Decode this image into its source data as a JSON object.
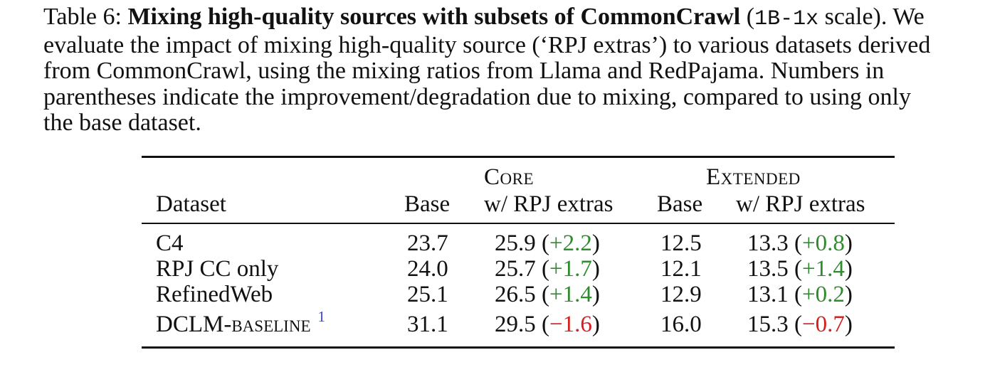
{
  "caption": {
    "label": "Table 6:",
    "title_bold": "Mixing high-quality sources with subsets of CommonCrawl",
    "scale_open": " (",
    "scale_code": "1B-1x",
    "scale_close": " scale).",
    "line1_tail": " We",
    "line2": "evaluate the impact of mixing high-quality source (‘RPJ extras’) to various datasets derived",
    "line3": "from CommonCrawl, using the mixing ratios from Llama and RedPajama.  Numbers in",
    "line4": "parentheses indicate the improvement/degradation due to mixing, compared to using only",
    "line5": "the base dataset."
  },
  "table": {
    "group_headers": {
      "core": "Core",
      "extended": "Extended"
    },
    "columns": {
      "dataset": "Dataset",
      "core_base": "Base",
      "core_extras": "w/ RPJ extras",
      "ext_base": "Base",
      "ext_extras": "w/ RPJ extras"
    },
    "rows": [
      {
        "dataset": "C4",
        "dataset_sc": "",
        "footnote": "",
        "core_base": "23.7",
        "core_extras": "25.9",
        "core_delta": "+2.2",
        "ext_base": "12.5",
        "ext_extras": "13.3",
        "ext_delta": "+0.8"
      },
      {
        "dataset": "RPJ CC only",
        "dataset_sc": "",
        "footnote": "",
        "core_base": "24.0",
        "core_extras": "25.7",
        "core_delta": "+1.7",
        "ext_base": "12.1",
        "ext_extras": "13.5",
        "ext_delta": "+1.4"
      },
      {
        "dataset": "RefinedWeb",
        "dataset_sc": "",
        "footnote": "",
        "core_base": "25.1",
        "core_extras": "26.5",
        "core_delta": "+1.4",
        "ext_base": "12.9",
        "ext_extras": "13.1",
        "ext_delta": "+0.2"
      },
      {
        "dataset": "DCLM-",
        "dataset_sc": "baseline",
        "footnote": "1",
        "core_base": "31.1",
        "core_extras": "29.5",
        "core_delta": "−1.6",
        "ext_base": "16.0",
        "ext_extras": "15.3",
        "ext_delta": "−0.7"
      }
    ],
    "colors": {
      "improvement": "#2e8b2e",
      "degradation": "#d42020",
      "footnote": "#3344dd"
    }
  }
}
